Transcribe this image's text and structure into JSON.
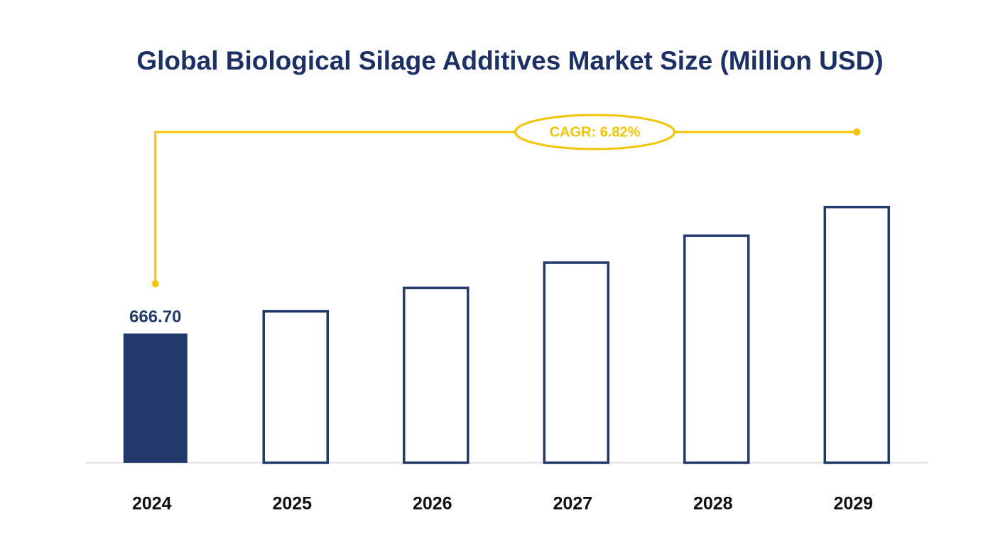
{
  "chart_data": {
    "type": "bar",
    "title": "Global Biological Silage Additives Market Size (Million USD)",
    "annotation": "CAGR: 6.82%",
    "categories": [
      "2024",
      "2025",
      "2026",
      "2027",
      "2028",
      "2029"
    ],
    "values": [
      666.7,
      712.17,
      760.74,
      812.63,
      868.05,
      927.25
    ],
    "value_labels": [
      "666.70",
      null,
      null,
      null,
      null,
      null
    ],
    "color": "#213a6b",
    "highlight_index": 0,
    "annotation_color": "#f5c400",
    "ylim": [
      400,
      1000
    ]
  }
}
